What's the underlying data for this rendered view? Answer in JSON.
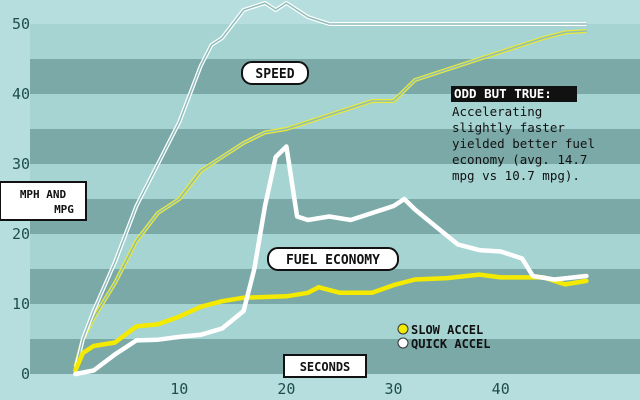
{
  "chart_data": {
    "type": "line",
    "ylabel_line1": "MPH AND",
    "ylabel_line2": "MPG",
    "xlabel": "SECONDS",
    "x_ticks": [
      10,
      20,
      30,
      40
    ],
    "y_ticks": [
      0,
      10,
      20,
      30,
      40,
      50
    ],
    "xlim": [
      -3,
      53
    ],
    "ylim": [
      0,
      52
    ],
    "grid": "horizontal bands",
    "annotations": {
      "speed_label": "SPEED",
      "fuel_label": "FUEL ECONOMY",
      "note_title": "ODD BUT TRUE:",
      "note_lines": [
        "Accelerating",
        "slightly faster",
        "yielded better fuel",
        "economy (avg. 14.7",
        "mpg vs 10.7 mpg)."
      ]
    },
    "legend": {
      "placement": "bottom-right"
    },
    "series": [
      {
        "name": "SLOW ACCEL",
        "metric": "speed",
        "color": "#e8ea3a",
        "points": [
          [
            0.3,
            1
          ],
          [
            1,
            5
          ],
          [
            2,
            8
          ],
          [
            4,
            13
          ],
          [
            6,
            19
          ],
          [
            8,
            23
          ],
          [
            10,
            25
          ],
          [
            12,
            29
          ],
          [
            14,
            31
          ],
          [
            16,
            33
          ],
          [
            18,
            34.5
          ],
          [
            20,
            35
          ],
          [
            22,
            36
          ],
          [
            24,
            37
          ],
          [
            26,
            38
          ],
          [
            28,
            39
          ],
          [
            30,
            39
          ],
          [
            32,
            42
          ],
          [
            34,
            43
          ],
          [
            36,
            44
          ],
          [
            38,
            45
          ],
          [
            40,
            46
          ],
          [
            42,
            47
          ],
          [
            44,
            48
          ],
          [
            46,
            48.8
          ],
          [
            48,
            49
          ]
        ]
      },
      {
        "name": "QUICK ACCEL",
        "metric": "speed",
        "color": "#ffffff",
        "points": [
          [
            0.3,
            0.5
          ],
          [
            1,
            5
          ],
          [
            2,
            9
          ],
          [
            4,
            16
          ],
          [
            6,
            24
          ],
          [
            8,
            30
          ],
          [
            10,
            36
          ],
          [
            12,
            44
          ],
          [
            13,
            47
          ],
          [
            14,
            48
          ],
          [
            16,
            52
          ],
          [
            18,
            53
          ],
          [
            19,
            52
          ],
          [
            20,
            53
          ],
          [
            22,
            51
          ],
          [
            24,
            50
          ],
          [
            26,
            50
          ],
          [
            28,
            50
          ],
          [
            30,
            50
          ],
          [
            35,
            50
          ],
          [
            40,
            50
          ],
          [
            45,
            50
          ],
          [
            48,
            50
          ]
        ]
      },
      {
        "name": "SLOW ACCEL",
        "metric": "fuel_economy",
        "color": "#f3ea00",
        "points": [
          [
            0.3,
            0.5
          ],
          [
            1,
            3
          ],
          [
            2,
            4
          ],
          [
            4,
            4.5
          ],
          [
            6,
            6.8
          ],
          [
            8,
            7.1
          ],
          [
            10,
            8.2
          ],
          [
            12,
            9.6
          ],
          [
            14,
            10.4
          ],
          [
            16,
            10.9
          ],
          [
            18,
            11
          ],
          [
            20,
            11.1
          ],
          [
            22,
            11.6
          ],
          [
            23,
            12.4
          ],
          [
            25,
            11.6
          ],
          [
            28,
            11.6
          ],
          [
            30,
            12.7
          ],
          [
            32,
            13.5
          ],
          [
            35,
            13.7
          ],
          [
            38,
            14.2
          ],
          [
            40,
            13.8
          ],
          [
            42,
            13.8
          ],
          [
            44,
            13.8
          ],
          [
            46,
            12.8
          ],
          [
            48,
            13.3
          ]
        ]
      },
      {
        "name": "QUICK ACCEL",
        "metric": "fuel_economy",
        "color": "#ffffff",
        "points": [
          [
            0.3,
            0
          ],
          [
            2,
            0.5
          ],
          [
            4,
            2.8
          ],
          [
            6,
            4.8
          ],
          [
            8,
            4.9
          ],
          [
            10,
            5.3
          ],
          [
            12,
            5.6
          ],
          [
            14,
            6.5
          ],
          [
            16,
            9
          ],
          [
            17,
            15
          ],
          [
            18,
            24
          ],
          [
            19,
            31
          ],
          [
            20,
            32.5
          ],
          [
            21,
            22.5
          ],
          [
            22,
            22
          ],
          [
            24,
            22.5
          ],
          [
            26,
            22
          ],
          [
            28,
            23
          ],
          [
            30,
            24
          ],
          [
            31,
            25
          ],
          [
            32,
            23.5
          ],
          [
            34,
            21
          ],
          [
            36,
            18.5
          ],
          [
            38,
            17.7
          ],
          [
            40,
            17.5
          ],
          [
            42,
            16.5
          ],
          [
            43,
            14
          ],
          [
            45,
            13.5
          ],
          [
            48,
            14
          ]
        ]
      }
    ]
  }
}
